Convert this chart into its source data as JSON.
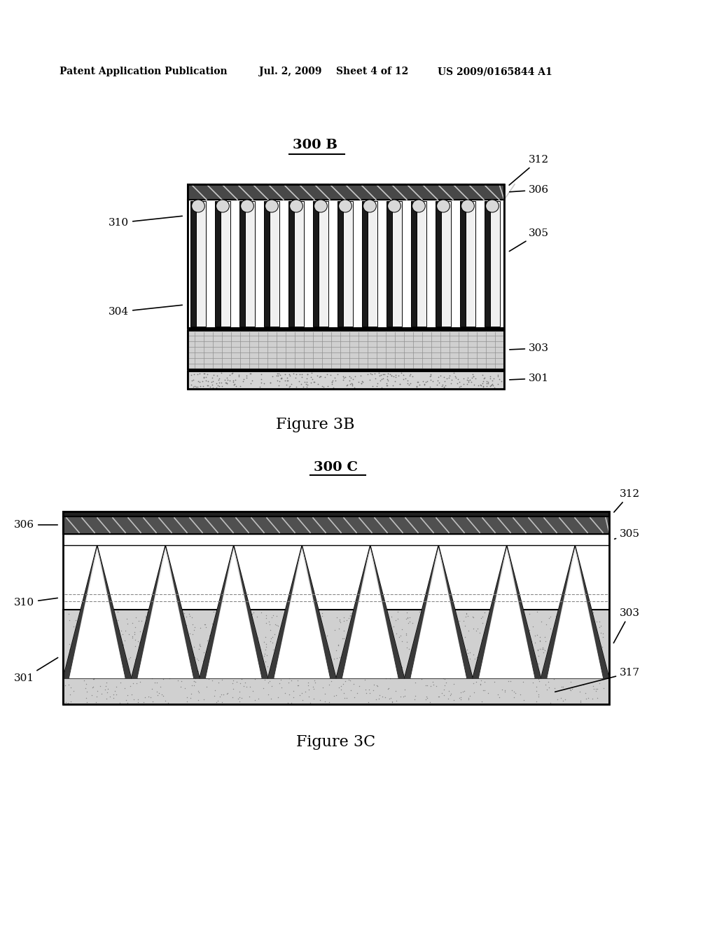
{
  "bg_color": "#ffffff",
  "header_text": "Patent Application Publication",
  "header_date": "Jul. 2, 2009",
  "header_sheet": "Sheet 4 of 12",
  "header_patent": "US 2009/0165844 A1",
  "fig3b_label": "300 B",
  "fig3b_caption": "Figure 3B",
  "fig3c_label": "300 C",
  "fig3c_caption": "Figure 3C"
}
